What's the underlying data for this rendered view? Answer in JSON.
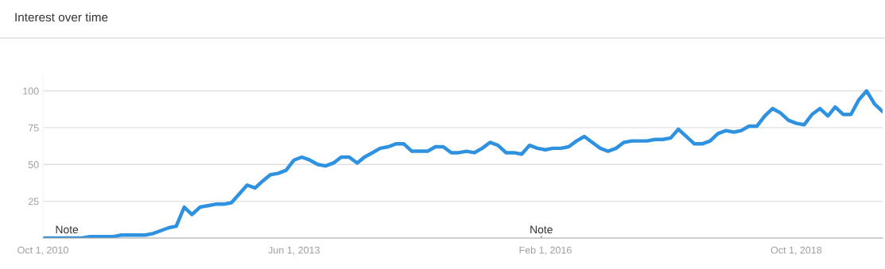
{
  "chart_data": {
    "type": "line",
    "title": "Interest over time",
    "x": [
      "2010-10",
      "2010-11",
      "2010-12",
      "2011-01",
      "2011-02",
      "2011-03",
      "2011-04",
      "2011-05",
      "2011-06",
      "2011-07",
      "2011-08",
      "2011-09",
      "2011-10",
      "2011-11",
      "2011-12",
      "2012-01",
      "2012-02",
      "2012-03",
      "2012-04",
      "2012-05",
      "2012-06",
      "2012-07",
      "2012-08",
      "2012-09",
      "2012-10",
      "2012-11",
      "2012-12",
      "2013-01",
      "2013-02",
      "2013-03",
      "2013-04",
      "2013-05",
      "2013-06",
      "2013-07",
      "2013-08",
      "2013-09",
      "2013-10",
      "2013-11",
      "2013-12",
      "2014-01",
      "2014-02",
      "2014-03",
      "2014-04",
      "2014-05",
      "2014-06",
      "2014-07",
      "2014-08",
      "2014-09",
      "2014-10",
      "2014-11",
      "2014-12",
      "2015-01",
      "2015-02",
      "2015-03",
      "2015-04",
      "2015-05",
      "2015-06",
      "2015-07",
      "2015-08",
      "2015-09",
      "2015-10",
      "2015-11",
      "2015-12",
      "2016-01",
      "2016-02",
      "2016-03",
      "2016-04",
      "2016-05",
      "2016-06",
      "2016-07",
      "2016-08",
      "2016-09",
      "2016-10",
      "2016-11",
      "2016-12",
      "2017-01",
      "2017-02",
      "2017-03",
      "2017-04",
      "2017-05",
      "2017-06",
      "2017-07",
      "2017-08",
      "2017-09",
      "2017-10",
      "2017-11",
      "2017-12",
      "2018-01",
      "2018-02",
      "2018-03",
      "2018-04",
      "2018-05",
      "2018-06",
      "2018-07",
      "2018-08",
      "2018-09",
      "2018-10",
      "2018-11",
      "2018-12",
      "2019-01",
      "2019-02",
      "2019-03",
      "2019-04",
      "2019-05",
      "2019-06",
      "2019-07",
      "2019-08",
      "2019-09"
    ],
    "series": [
      {
        "color": "#2f92e0",
        "values": [
          0,
          0,
          0,
          0,
          0,
          0,
          1,
          1,
          1,
          1,
          2,
          2,
          2,
          2,
          3,
          5,
          7,
          8,
          21,
          16,
          21,
          22,
          23,
          23,
          24,
          30,
          36,
          34,
          39,
          43,
          44,
          46,
          53,
          55,
          53,
          50,
          49,
          51,
          55,
          55,
          51,
          55,
          58,
          61,
          62,
          64,
          64,
          59,
          59,
          59,
          62,
          62,
          58,
          58,
          59,
          58,
          61,
          65,
          63,
          58,
          58,
          57,
          63,
          61,
          60,
          61,
          61,
          62,
          66,
          69,
          65,
          61,
          59,
          61,
          65,
          66,
          66,
          66,
          67,
          67,
          68,
          74,
          69,
          64,
          64,
          66,
          71,
          73,
          72,
          73,
          76,
          76,
          83,
          88,
          85,
          80,
          78,
          77,
          84,
          88,
          83,
          89,
          84,
          84,
          94,
          100,
          91,
          86
        ]
      }
    ],
    "xlim": [
      "2010-10",
      "2019-09"
    ],
    "xticks": [
      {
        "value": "2010-10-01",
        "label": "Oct 1, 2010"
      },
      {
        "value": "2013-06-01",
        "label": "Jun 1, 2013"
      },
      {
        "value": "2016-02-01",
        "label": "Feb 1, 2016"
      },
      {
        "value": "2018-10-01",
        "label": "Oct 1, 2018"
      }
    ],
    "ylim": [
      0,
      110
    ],
    "yticks": [
      25,
      50,
      75,
      100
    ],
    "grid": "y",
    "marker": "none",
    "line_style": "solid",
    "annotations": [
      "Note",
      "Note"
    ]
  }
}
